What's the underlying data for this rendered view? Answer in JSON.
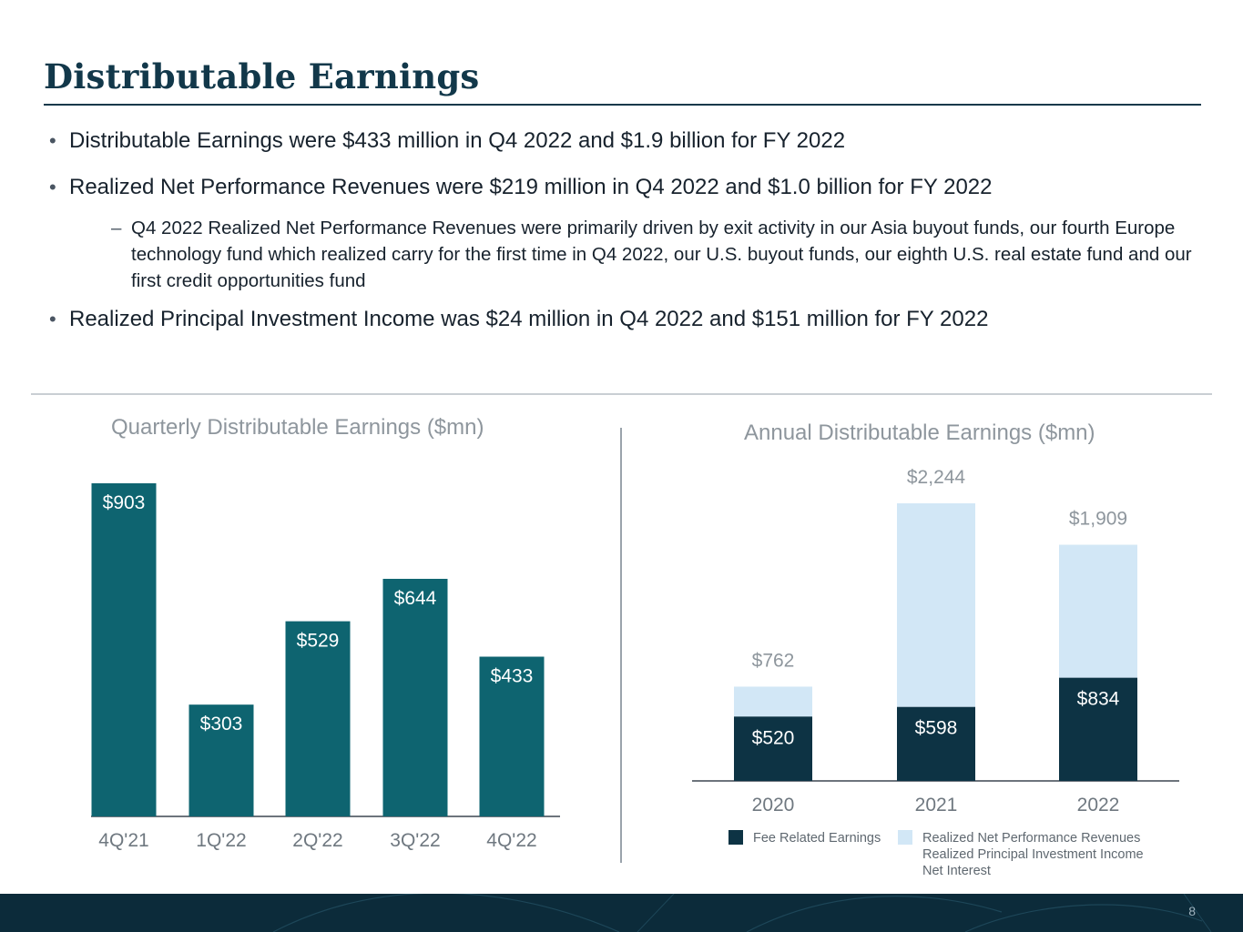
{
  "page": {
    "title": "Distributable Earnings",
    "page_number": "8"
  },
  "bullets": [
    "Distributable Earnings were $433 million in Q4 2022 and $1.9 billion for FY 2022",
    "Realized Net Performance Revenues were $219 million in Q4 2022 and $1.0 billion for FY 2022",
    "Realized Principal Investment Income was $24 million in Q4 2022 and $151 million for FY 2022"
  ],
  "sub_bullet": "Q4 2022 Realized Net Performance Revenues were primarily driven by exit activity in our Asia buyout funds, our fourth Europe technology fund which realized carry for the first time in Q4 2022, our U.S. buyout funds, our eighth U.S. real estate fund and our first credit opportunities fund",
  "colors": {
    "quarterly_bar": "#0e6470",
    "fee_related": "#0d3344",
    "other": "#d2e7f6",
    "axis": "#3d4650",
    "muted_text": "#8e969d"
  },
  "legend": {
    "fee_related": "Fee Related Earnings",
    "other_lines": [
      "Realized Net Performance Revenues",
      "Realized Principal Investment Income",
      "Net Interest"
    ]
  },
  "chart_data": [
    {
      "type": "bar",
      "title": "Quarterly Distributable Earnings ($mn)",
      "categories": [
        "4Q'21",
        "1Q'22",
        "2Q'22",
        "3Q'22",
        "4Q'22"
      ],
      "values": [
        903,
        303,
        529,
        644,
        433
      ],
      "labels": [
        "$903",
        "$303",
        "$529",
        "$644",
        "$433"
      ],
      "ylim": [
        0,
        1000
      ],
      "grid": false
    },
    {
      "type": "bar",
      "stacked": true,
      "title": "Annual Distributable Earnings ($mn)",
      "categories": [
        "2020",
        "2021",
        "2022"
      ],
      "series": [
        {
          "name": "Fee Related Earnings",
          "values": [
            520,
            598,
            834
          ],
          "labels": [
            "$520",
            "$598",
            "$834"
          ]
        },
        {
          "name": "Realized Net Performance Revenues / Realized Principal Investment Income / Net Interest",
          "values": [
            242,
            1646,
            1075
          ]
        }
      ],
      "totals": [
        762,
        2244,
        1909
      ],
      "total_labels": [
        "$762",
        "$2,244",
        "$1,909"
      ],
      "ylim": [
        0,
        2500
      ],
      "grid": false,
      "legend_position": "bottom"
    }
  ]
}
